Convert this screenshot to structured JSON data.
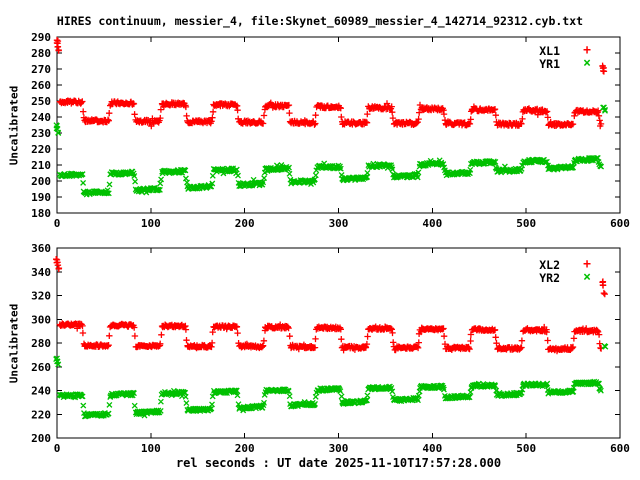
{
  "title": "HIRES continuum, messier_4, file:Skynet_60989_messier_4_142714_92312.cyb.txt",
  "xlabel": "rel seconds : UT date 2025-11-10T17:57:28.000",
  "colors": {
    "background": "#ffffff",
    "axis": "#000000",
    "text": "#000000",
    "red_series": "#ff0000",
    "green_series": "#00c000"
  },
  "chart_data": [
    {
      "panel": "top",
      "type": "scatter",
      "ylabel": "Uncalibrated",
      "ylim": [
        180,
        290
      ],
      "ytick_step": 10,
      "xlim": [
        0,
        600
      ],
      "xticks": [
        0,
        100,
        200,
        300,
        400,
        500,
        600
      ],
      "grid": false,
      "legend_position": "top-right-inside",
      "series": [
        {
          "name": "XL1",
          "marker": "plus",
          "color": "#ff0000",
          "square_wave": {
            "t_start": 3,
            "t_end": 580,
            "sample_interval": 0.8,
            "period": 55,
            "high_duration": 27,
            "high_level_start": 249.5,
            "high_level_end": 243.2,
            "low_level_start": 237.8,
            "low_level_end": 235.0,
            "noise": 0.9,
            "seed": 11
          },
          "outliers": [
            [
              0,
              288
            ],
            [
              0.5,
              286
            ],
            [
              1,
              284
            ],
            [
              1.8,
              281.5
            ],
            [
              581.5,
              272
            ],
            [
              582,
              270.5
            ],
            [
              582.8,
              268.5
            ]
          ]
        },
        {
          "name": "YR1",
          "marker": "cross",
          "color": "#00c000",
          "square_wave": {
            "t_start": 3,
            "t_end": 580,
            "sample_interval": 0.8,
            "period": 55,
            "high_duration": 27,
            "high_level_start": 203.8,
            "high_level_end": 213.6,
            "low_level_start": 191.6,
            "low_level_end": 209.6,
            "noise": 1.0,
            "seed": 22
          },
          "outliers": [
            [
              0,
              234.5
            ],
            [
              0.6,
              232.5
            ],
            [
              1.4,
              230
            ],
            [
              583,
              246
            ],
            [
              584,
              244.5
            ]
          ]
        }
      ]
    },
    {
      "panel": "bottom",
      "type": "scatter",
      "ylabel": "Uncalibrated",
      "ylim": [
        200,
        360
      ],
      "ytick_step": 20,
      "xlim": [
        0,
        600
      ],
      "xticks": [
        0,
        100,
        200,
        300,
        400,
        500,
        600
      ],
      "grid": false,
      "legend_position": "top-right-inside",
      "series": [
        {
          "name": "XL2",
          "marker": "plus",
          "color": "#ff0000",
          "square_wave": {
            "t_start": 3,
            "t_end": 580,
            "sample_interval": 0.8,
            "period": 55,
            "high_duration": 27,
            "high_level_start": 295.5,
            "high_level_end": 290.0,
            "low_level_start": 278.0,
            "low_level_end": 275.0,
            "noise": 1.0,
            "seed": 33
          },
          "outliers": [
            [
              0,
              350
            ],
            [
              0.5,
              348
            ],
            [
              1,
              345.5
            ],
            [
              1.8,
              342.5
            ],
            [
              581.5,
              331
            ],
            [
              582,
              328.5
            ],
            [
              582.8,
              322
            ]
          ]
        },
        {
          "name": "YR2",
          "marker": "cross",
          "color": "#00c000",
          "square_wave": {
            "t_start": 3,
            "t_end": 580,
            "sample_interval": 0.8,
            "period": 55,
            "high_duration": 27,
            "high_level_start": 235.5,
            "high_level_end": 246.5,
            "low_level_start": 218.0,
            "low_level_end": 240.5,
            "noise": 1.2,
            "seed": 44
          },
          "outliers": [
            [
              0,
              267
            ],
            [
              0.6,
              264.5
            ],
            [
              1.4,
              262
            ],
            [
              583.5,
              277.5
            ]
          ]
        }
      ]
    }
  ]
}
